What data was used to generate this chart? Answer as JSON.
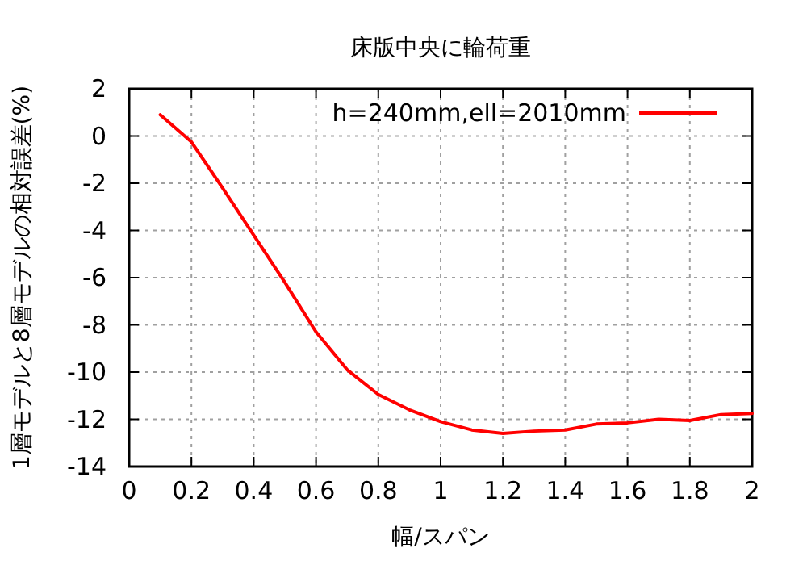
{
  "chart_data": {
    "type": "line",
    "title": "床版中央に輪荷重",
    "xlabel": "幅/スパン",
    "ylabel": "1層モデルと8層モデルの相対誤差(%)",
    "x": [
      0.1,
      0.2,
      0.3,
      0.4,
      0.5,
      0.6,
      0.7,
      0.8,
      0.9,
      1.0,
      1.1,
      1.2,
      1.3,
      1.4,
      1.5,
      1.6,
      1.7,
      1.8,
      1.9,
      2.0
    ],
    "series": [
      {
        "name": "h=240mm,ell=2010mm",
        "color": "#ff0000",
        "values": [
          0.9,
          -0.25,
          -2.2,
          -4.2,
          -6.2,
          -8.3,
          -9.9,
          -10.95,
          -11.6,
          -12.1,
          -12.45,
          -12.6,
          -12.5,
          -12.45,
          -12.2,
          -12.15,
          -12.0,
          -12.05,
          -11.8,
          -11.75
        ]
      }
    ],
    "xlim": [
      0,
      2
    ],
    "xticks": [
      0,
      0.2,
      0.4,
      0.6,
      0.8,
      1,
      1.2,
      1.4,
      1.6,
      1.8,
      2
    ],
    "ylim": [
      -14,
      2
    ],
    "yticks": [
      -14,
      -12,
      -10,
      -8,
      -6,
      -4,
      -2,
      0,
      2
    ],
    "grid": true,
    "legend": "top right",
    "marker": "none",
    "line_style": "solid"
  }
}
